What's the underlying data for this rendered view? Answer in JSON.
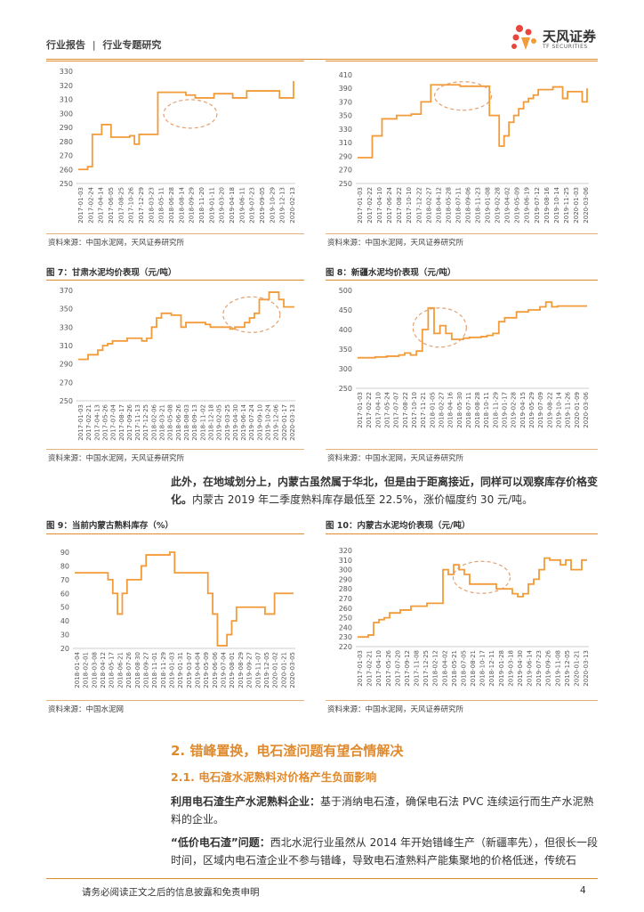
{
  "header": {
    "section": "行业报告",
    "divider": "|",
    "subsection": "行业专题研究"
  },
  "logo": {
    "name": "天风证券",
    "sub": "TF SECURITIES"
  },
  "colors": {
    "accent": "#e08a2e",
    "line": "#f29b38",
    "ellipse": "#e4a070"
  },
  "figures": [
    {
      "id": "fig5",
      "title": "",
      "source": "资料来源：中国水泥网，天风证券研究所",
      "chart_data": {
        "type": "line",
        "yticks": [
          250,
          260,
          270,
          280,
          290,
          300,
          310,
          320,
          330
        ],
        "ylim": [
          250,
          330
        ],
        "xticks": [
          "2017-01-03",
          "2017-02-24",
          "2017-04-14",
          "2017-06-05",
          "2017-08-25",
          "2017-10-26",
          "2017-12-29",
          "2018-03-23",
          "2018-05-11",
          "2018-06-28",
          "2018-08-14",
          "2018-09-29",
          "2018-11-20",
          "2019-01-11",
          "2019-03-20",
          "2019-04-18",
          "2019-06-11",
          "2019-07-23",
          "2019-09-05",
          "2019-10-29",
          "2019-12-13",
          "2020-02-13"
        ],
        "values": [
          260,
          260,
          262,
          285,
          285,
          292,
          292,
          283,
          283,
          283,
          283,
          284,
          278,
          285,
          285,
          285,
          285,
          315,
          315,
          315,
          315,
          315,
          315,
          313,
          313,
          311,
          311,
          311,
          311,
          314,
          314,
          314,
          314,
          311,
          311,
          311,
          316,
          316,
          316,
          316,
          316,
          316,
          316,
          311,
          311,
          311,
          323
        ]
      }
    },
    {
      "id": "fig6",
      "title": "",
      "source": "资料来源：中国水泥网，天风证券研究所",
      "chart_data": {
        "type": "line",
        "yticks": [
          250,
          270,
          290,
          310,
          330,
          350,
          370,
          390,
          410
        ],
        "ylim": [
          250,
          415
        ],
        "xticks": [
          "2017-01-03",
          "2017-02-22",
          "2017-04-10",
          "2017-06-24",
          "2017-08-22",
          "2017-10-10",
          "2017-12-22",
          "2018-02-27",
          "2018-04-12",
          "2018-05-28",
          "2018-07-11",
          "2018-09-06",
          "2018-11-23",
          "2019-01-08",
          "2019-02-28",
          "2019-04-02",
          "2019-05-09",
          "2019-06-19",
          "2019-07-12",
          "2019-08-16",
          "2019-10-14",
          "2019-11-25",
          "2020-01-03",
          "2020-03-06"
        ],
        "values": [
          288,
          288,
          288,
          320,
          320,
          345,
          345,
          345,
          350,
          350,
          350,
          352,
          352,
          370,
          370,
          395,
          395,
          395,
          395,
          395,
          395,
          393,
          393,
          393,
          393,
          393,
          393,
          350,
          350,
          305,
          320,
          340,
          350,
          360,
          370,
          375,
          380,
          388,
          388,
          388,
          392,
          392,
          375,
          385,
          385,
          385,
          370,
          390
        ]
      }
    },
    {
      "id": "fig7",
      "title": "图 7：甘肃水泥均价表现（元/吨）",
      "source": "资料来源：中国水泥网，天风证券研究所",
      "chart_data": {
        "type": "line",
        "yticks": [
          250,
          270,
          290,
          310,
          330,
          350,
          370
        ],
        "ylim": [
          250,
          370
        ],
        "xticks": [
          "2017-01-03",
          "2017-02-21",
          "2017-04-13",
          "2017-05-26",
          "2017-07-04",
          "2017-08-17",
          "2017-09-26",
          "2017-11-13",
          "2017-12-25",
          "2018-02-06",
          "2018-03-21",
          "2018-05-08",
          "2018-06-26",
          "2018-08-03",
          "2018-09-13",
          "2018-11-02",
          "2018-12-18",
          "2019-02-05",
          "2019-03-25",
          "2019-04-30",
          "2019-06-14",
          "2019-07-24",
          "2019-09-10",
          "2019-10-24",
          "2019-12-06",
          "2020-01-17",
          "2020-03-13"
        ],
        "values": [
          295,
          295,
          300,
          300,
          305,
          310,
          312,
          315,
          315,
          315,
          318,
          318,
          318,
          315,
          318,
          330,
          340,
          345,
          345,
          343,
          343,
          330,
          335,
          335,
          335,
          335,
          333,
          330,
          330,
          330,
          330,
          328,
          330,
          330,
          335,
          340,
          345,
          360,
          360,
          368,
          368,
          360,
          352,
          352,
          353
        ]
      }
    },
    {
      "id": "fig8",
      "title": "图 8：新疆水泥均价表现（元/吨）",
      "source": "资料来源：中国水泥网，天风证券研究所",
      "chart_data": {
        "type": "line",
        "yticks": [
          250,
          300,
          350,
          400,
          450,
          500
        ],
        "ylim": [
          250,
          500
        ],
        "xticks": [
          "2017-01-03",
          "2017-02-22",
          "2017-04-10",
          "2017-05-24",
          "2017-07-07",
          "2017-08-22",
          "2017-10-10",
          "2017-11-21",
          "2018-01-05",
          "2018-02-27",
          "2018-04-16",
          "2018-05-30",
          "2018-07-11",
          "2018-08-28",
          "2018-10-11",
          "2018-11-29",
          "2019-01-17",
          "2019-02-28",
          "2019-04-15",
          "2019-05-29",
          "2019-07-09",
          "2019-08-22",
          "2019-10-14",
          "2019-11-26",
          "2020-01-09",
          "2020-03-06"
        ],
        "values": [
          328,
          328,
          328,
          330,
          330,
          332,
          332,
          335,
          340,
          335,
          345,
          400,
          455,
          390,
          410,
          390,
          375,
          375,
          378,
          380,
          380,
          382,
          385,
          390,
          420,
          430,
          430,
          445,
          445,
          450,
          450,
          458,
          470,
          458,
          460,
          460,
          460,
          460,
          460,
          460
        ]
      }
    },
    {
      "id": "fig9",
      "title": "图 9：当前内蒙古熟料库存（%）",
      "source": "资料来源：中国水泥网",
      "chart_data": {
        "type": "line",
        "yticks": [
          20,
          30,
          40,
          50,
          60,
          70,
          80,
          90
        ],
        "ylim": [
          20,
          90
        ],
        "xticks": [
          "2018-01-04",
          "2018-02-01",
          "2018-03-08",
          "2018-04-12",
          "2018-05-17",
          "2018-06-21",
          "2018-07-26",
          "2018-08-30",
          "2018-09-27",
          "2018-11-01",
          "2018-11-29",
          "2019-01-03",
          "2019-01-31",
          "2019-03-07",
          "2019-04-04",
          "2019-05-09",
          "2019-06-06",
          "2019-07-04",
          "2019-08-01",
          "2019-08-29",
          "2019-09-27",
          "2019-11-07",
          "2019-12-05",
          "2020-01-02",
          "2020-01-21",
          "2020-03-05"
        ],
        "values": [
          75,
          75,
          75,
          75,
          75,
          75,
          75,
          70,
          60,
          45,
          60,
          70,
          70,
          70,
          80,
          88,
          88,
          88,
          88,
          88,
          90,
          75,
          75,
          75,
          75,
          75,
          75,
          75,
          60,
          45,
          22,
          22,
          30,
          40,
          50,
          50,
          50,
          50,
          50,
          50,
          45,
          45,
          60,
          60,
          60,
          60,
          60
        ]
      }
    },
    {
      "id": "fig10",
      "title": "图 10：内蒙古水泥均价表现（元/吨）",
      "source": "资料来源：中国水泥网，天风证券研究所",
      "chart_data": {
        "type": "line",
        "yticks": [
          220,
          230,
          240,
          250,
          260,
          270,
          280,
          290,
          300,
          310,
          320
        ],
        "ylim": [
          220,
          320
        ],
        "xticks": [
          "2017-01-03",
          "2017-02-21",
          "2017-04-10",
          "2017-05-26",
          "2017-07-20",
          "2017-09-12",
          "2017-11-08",
          "2017-12-25",
          "2018-02-12",
          "2018-04-02",
          "2018-05-21",
          "2018-07-05",
          "2018-08-21",
          "2018-10-17",
          "2018-12-11",
          "2019-01-28",
          "2019-03-18",
          "2019-04-30",
          "2019-06-14",
          "2019-07-23",
          "2019-09-26",
          "2019-11-08",
          "2019-12-05",
          "2020-01-21",
          "2020-03-13"
        ],
        "values": [
          230,
          230,
          232,
          245,
          248,
          250,
          255,
          255,
          258,
          258,
          262,
          262,
          262,
          265,
          265,
          265,
          300,
          295,
          305,
          300,
          295,
          285,
          285,
          285,
          285,
          285,
          280,
          280,
          280,
          275,
          272,
          275,
          285,
          290,
          300,
          312,
          310,
          310,
          305,
          310,
          300,
          300,
          310,
          310
        ]
      }
    }
  ],
  "paragraph1": {
    "bold": "此外，在地域划分上，内蒙古虽然属于华北，但是由于距离接近，同样可以观察库存价格变化。",
    "text": "内蒙古 2019 年二季度熟料库存最低至 22.5%，涨价幅度约 30 元/吨。"
  },
  "section": {
    "h2": "2. 错峰置换，电石渣问题有望合情解决",
    "h3": "2.1. 电石渣水泥熟料对价格产生负面影响"
  },
  "paragraph2": {
    "bold": "利用电石渣生产水泥熟料企业：",
    "text": "基于消纳电石渣，确保电石法 PVC 连续运行而生产水泥熟料的企业。"
  },
  "paragraph3": {
    "bold": "“低价电石渣”问题：",
    "text": "西北水泥行业虽然从 2014 年开始错峰生产（新疆率先），但很长一段时间，区域内电石渣企业不参与错峰，导致电石渣熟料产能集聚地的价格低迷，传统石"
  },
  "footer": {
    "disclaimer": "请务必阅读正文之后的信息披露和免责申明",
    "page": "4"
  }
}
